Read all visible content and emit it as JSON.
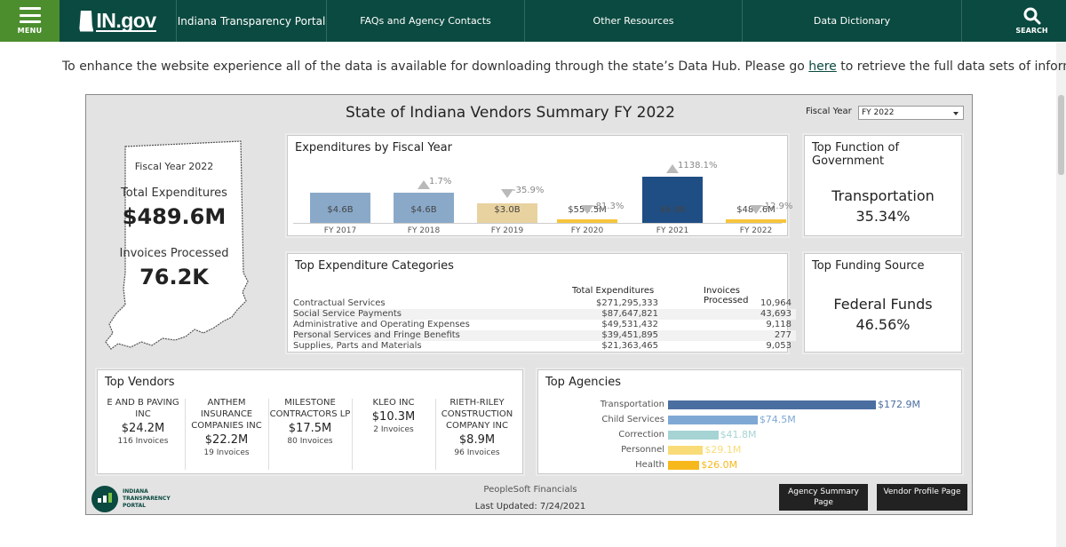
{
  "header": {
    "menu_label": "MENU",
    "logo_text": "IN.gov",
    "nav": [
      "Indiana Transparency Portal",
      "FAQs and Agency Contacts",
      "Other Resources",
      "Data Dictionary"
    ],
    "search_label": "SEARCH"
  },
  "notice": {
    "before": "To enhance the website experience all of the data is available for downloading through the state’s Data Hub. Please go ",
    "link": "here",
    "after": " to retrieve the full data sets of information."
  },
  "dashboard": {
    "title": "State of Indiana Vendors Summary FY 2022",
    "fiscal_year_label": "Fiscal Year",
    "fiscal_year_value": "FY 2022",
    "summary": {
      "fy": "Fiscal Year 2022",
      "total_label": "Total Expenditures",
      "total_value": "$489.6M",
      "invoices_label": "Invoices Processed",
      "invoices_value": "76.2K"
    },
    "exp_title": "Expenditures by Fiscal Year",
    "top_function": {
      "title": "Top Function of Government",
      "name": "Transportation",
      "pct": "35.34%"
    },
    "top_funding": {
      "title": "Top Funding Source",
      "name": "Federal Funds",
      "pct": "46.56%"
    },
    "categories": {
      "title": "Top Expenditure Categories",
      "col_total": "Total Expenditures",
      "col_invoices": "Invoices Processed",
      "rows": [
        {
          "name": "Contractual Services",
          "total": "$271,295,333",
          "invoices": "10,964"
        },
        {
          "name": "Social Service Payments",
          "total": "$87,647,821",
          "invoices": "43,693"
        },
        {
          "name": "Administrative and Operating Expenses",
          "total": "$49,531,432",
          "invoices": "9,118"
        },
        {
          "name": "Personal Services and Fringe Benefits",
          "total": "$39,451,895",
          "invoices": "277"
        },
        {
          "name": "Supplies, Parts and Materials",
          "total": "$21,363,465",
          "invoices": "9,053"
        }
      ]
    },
    "vendors": {
      "title": "Top Vendors",
      "items": [
        {
          "name": "E AND B PAVING INC",
          "amount": "$24.2M",
          "invoices": "116 Invoices"
        },
        {
          "name": "ANTHEM INSURANCE COMPANIES INC",
          "amount": "$22.2M",
          "invoices": "19 Invoices"
        },
        {
          "name": "MILESTONE CONTRACTORS LP",
          "amount": "$17.5M",
          "invoices": "80 Invoices"
        },
        {
          "name": "KLEO INC",
          "amount": "$10.3M",
          "invoices": "2 Invoices"
        },
        {
          "name": "RIETH-RILEY CONSTRUCTION COMPANY INC",
          "amount": "$8.9M",
          "invoices": "96 Invoices"
        }
      ]
    },
    "agencies_title": "Top Agencies",
    "footer": {
      "logo_line1": "INDIANA",
      "logo_line2": "TRANSPARENCY",
      "logo_line3": "PORTAL",
      "source": "PeopleSoft Financials",
      "updated": "Last Updated: 7/24/2021",
      "btn_agency": "Agency Summary Page",
      "btn_vendor": "Vendor Profile Page"
    }
  },
  "chart_data": [
    {
      "type": "bar",
      "title": "Expenditures by Fiscal Year",
      "categories": [
        "FY 2017",
        "FY 2018",
        "FY 2019",
        "FY 2020",
        "FY 2021",
        "FY 2022"
      ],
      "values": [
        4.6,
        4.6,
        3.0,
        0.5565,
        6.9,
        0.4896
      ],
      "labels": [
        "$4.6B",
        "$4.6B",
        "$3.0B",
        "$556.5M",
        "$6.9B",
        "$489.6M"
      ],
      "changes": [
        "",
        "1.7%",
        "-35.9%",
        "-81.3%",
        "1138.1%",
        "-12.9%"
      ],
      "colors": [
        "#8aa9c9",
        "#8aa9c9",
        "#e8d29f",
        "#f7c53c",
        "#1f4e85",
        "#f7c53c"
      ]
    },
    {
      "type": "bar",
      "title": "Top Agencies",
      "categories": [
        "Transportation",
        "Child Services",
        "Correction",
        "Personnel",
        "Health"
      ],
      "values": [
        172.9,
        74.5,
        41.8,
        29.1,
        26.0
      ],
      "labels": [
        "$172.9M",
        "$74.5M",
        "$41.8M",
        "$29.1M",
        "$26.0M"
      ],
      "colors": [
        "#4b6ea0",
        "#7fa8d4",
        "#a6d4d4",
        "#f9dc78",
        "#f7b81c"
      ]
    }
  ]
}
